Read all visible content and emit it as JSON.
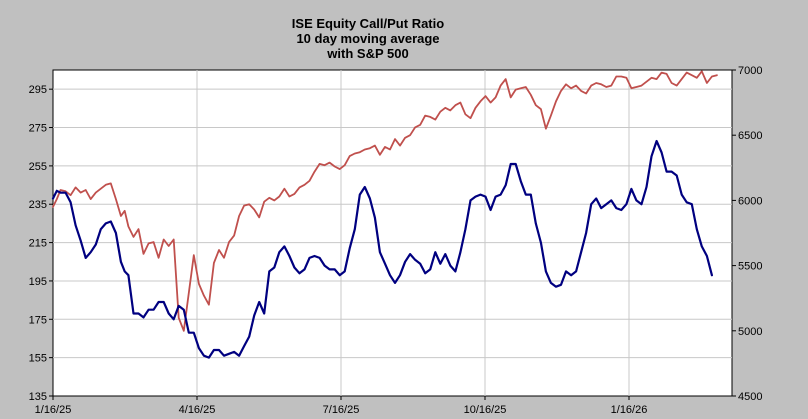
{
  "chart_data": {
    "type": "line",
    "title": [
      "ISE Equity Call/Put Ratio",
      "10 day moving average",
      "with S&P 500"
    ],
    "xlabel": "",
    "ylabel": "",
    "x_tick_labels": [
      "1/16/25",
      "4/16/25",
      "7/16/25",
      "10/16/25",
      "1/16/26"
    ],
    "y_left_ticks": [
      "295",
      "275",
      "255",
      "235",
      "215",
      "195",
      "175",
      "155",
      "135"
    ],
    "y_right_ticks": [
      "7000",
      "6500",
      "6000",
      "5500",
      "5000",
      "4500"
    ],
    "ylim_left": [
      135,
      305
    ],
    "ylim_right": [
      4500,
      7000
    ],
    "xlim": [
      0,
      540
    ],
    "grid": true,
    "series": [
      {
        "axis": "left",
        "color": "#000080",
        "x": [
          0,
          3,
          6,
          10,
          14,
          18,
          22,
          26,
          30,
          34,
          38,
          42,
          46,
          50,
          54,
          57,
          60,
          64,
          68,
          72,
          76,
          80,
          84,
          88,
          92,
          96,
          100,
          104,
          108,
          112,
          116,
          120,
          124,
          128,
          132,
          136,
          140,
          144,
          148,
          152,
          156,
          160,
          164,
          168,
          172,
          176,
          180,
          184,
          188,
          192,
          196,
          200,
          204,
          208,
          212,
          216,
          220,
          224,
          228,
          232,
          236,
          240,
          244,
          248,
          252,
          256,
          260,
          264,
          268,
          272,
          276,
          280,
          284,
          288,
          292,
          296,
          300,
          304,
          308,
          312,
          316,
          320,
          324,
          328,
          332,
          336,
          340,
          344,
          348,
          352,
          356,
          360,
          364,
          368,
          372,
          376,
          380,
          384,
          388,
          392,
          396,
          400,
          404,
          408,
          412,
          416,
          420,
          424,
          428,
          432,
          436,
          440,
          444,
          448,
          452,
          456,
          460,
          464,
          468,
          472,
          476,
          480,
          484,
          488,
          492,
          496,
          500,
          504,
          508,
          512,
          516,
          520,
          524
        ],
        "y": [
          238,
          242,
          241,
          241,
          236,
          224,
          216,
          207,
          210,
          214,
          222,
          225,
          226,
          220,
          205,
          200,
          198,
          178,
          178,
          176,
          180,
          180,
          184,
          184,
          178,
          175,
          182,
          180,
          168,
          168,
          160,
          156,
          155,
          159,
          159,
          156,
          157,
          158,
          156,
          161,
          166,
          177,
          184,
          178,
          200,
          202,
          210,
          213,
          208,
          202,
          199,
          201,
          207,
          208,
          207,
          203,
          201,
          201,
          198,
          200,
          212,
          222,
          240,
          244,
          238,
          228,
          210,
          204,
          198,
          194,
          198,
          205,
          209,
          206,
          204,
          199,
          201,
          210,
          204,
          209,
          203,
          200,
          210,
          222,
          237,
          239,
          240,
          239,
          232,
          239,
          240,
          245,
          256,
          256,
          247,
          240,
          240,
          225,
          215,
          200,
          194,
          192,
          193,
          200,
          198,
          200,
          210,
          220,
          235,
          238,
          233,
          235,
          237,
          233,
          232,
          235,
          243,
          237,
          235,
          244,
          260,
          268,
          262,
          252,
          252,
          250,
          240,
          236,
          235,
          222,
          213,
          208,
          198
        ]
      },
      {
        "axis": "right",
        "color": "#c0504d",
        "x": [
          0,
          3,
          6,
          10,
          14,
          18,
          22,
          26,
          30,
          34,
          38,
          42,
          46,
          50,
          54,
          57,
          60,
          64,
          68,
          72,
          76,
          80,
          84,
          88,
          92,
          96,
          100,
          104,
          108,
          112,
          116,
          120,
          124,
          128,
          132,
          136,
          140,
          144,
          148,
          152,
          156,
          160,
          164,
          168,
          172,
          176,
          180,
          184,
          188,
          192,
          196,
          200,
          204,
          208,
          212,
          216,
          220,
          224,
          228,
          232,
          236,
          240,
          244,
          248,
          252,
          256,
          260,
          264,
          268,
          272,
          276,
          280,
          284,
          288,
          292,
          296,
          300,
          304,
          308,
          312,
          316,
          320,
          324,
          328,
          332,
          336,
          340,
          344,
          348,
          352,
          356,
          360,
          364,
          368,
          372,
          376,
          380,
          384,
          388,
          392,
          396,
          400,
          404,
          408,
          412,
          416,
          420,
          424,
          428,
          432,
          436,
          440,
          444,
          448,
          452,
          456,
          460,
          464,
          468,
          472,
          476,
          480,
          484,
          488,
          492,
          496,
          500,
          504,
          508,
          512,
          516,
          520,
          524,
          528
        ],
        "y": [
          5950,
          6010,
          6080,
          6070,
          6040,
          6100,
          6060,
          6080,
          6010,
          6060,
          6090,
          6120,
          6130,
          6010,
          5880,
          5920,
          5800,
          5720,
          5780,
          5590,
          5670,
          5680,
          5560,
          5700,
          5650,
          5700,
          5100,
          5000,
          5290,
          5580,
          5360,
          5270,
          5200,
          5520,
          5620,
          5560,
          5680,
          5730,
          5880,
          5960,
          5970,
          5930,
          5870,
          5990,
          6020,
          6000,
          6030,
          6090,
          6030,
          6050,
          6100,
          6120,
          6150,
          6220,
          6280,
          6270,
          6290,
          6260,
          6240,
          6270,
          6340,
          6360,
          6370,
          6390,
          6400,
          6420,
          6350,
          6410,
          6390,
          6470,
          6420,
          6480,
          6500,
          6560,
          6580,
          6650,
          6640,
          6620,
          6680,
          6710,
          6690,
          6730,
          6750,
          6660,
          6630,
          6710,
          6760,
          6800,
          6750,
          6790,
          6880,
          6930,
          6790,
          6850,
          6860,
          6870,
          6810,
          6730,
          6700,
          6550,
          6650,
          6760,
          6840,
          6890,
          6860,
          6880,
          6840,
          6820,
          6880,
          6900,
          6890,
          6870,
          6880,
          6950,
          6950,
          6940,
          6860,
          6870,
          6880,
          6910,
          6940,
          6930,
          6980,
          6970,
          6900,
          6880,
          6930,
          6980,
          6960,
          6940,
          6990,
          6900,
          6950,
          6960
        ]
      }
    ]
  }
}
